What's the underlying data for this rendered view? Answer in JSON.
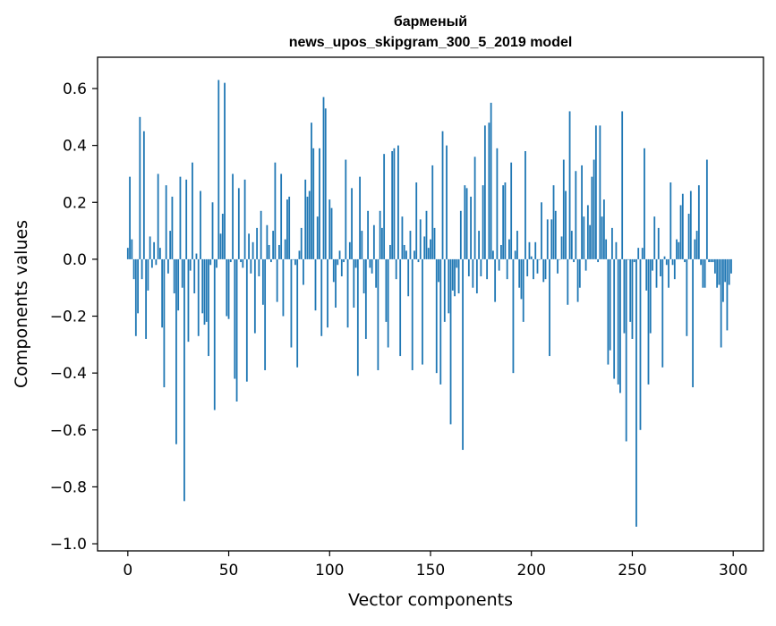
{
  "chart_data": {
    "type": "bar",
    "title": "барменый",
    "subtitle": "news_upos_skipgram_300_5_2019 model",
    "xlabel": "Vector components",
    "ylabel": "Components values",
    "xlim": [
      -15,
      315
    ],
    "ylim": [
      -1.025,
      0.71
    ],
    "xticks": [
      0,
      50,
      100,
      150,
      200,
      250,
      300
    ],
    "xtick_labels": [
      "0",
      "50",
      "100",
      "150",
      "200",
      "250",
      "300"
    ],
    "yticks": [
      -1.0,
      -0.8,
      -0.6,
      -0.4,
      -0.2,
      0.0,
      0.2,
      0.4,
      0.6
    ],
    "ytick_labels": [
      "−1.0",
      "−0.8",
      "−0.6",
      "−0.4",
      "−0.2",
      "0.0",
      "0.2",
      "0.4",
      "0.6"
    ],
    "bar_color": "#1f77b4",
    "grid": false,
    "x": [
      0,
      1,
      2,
      3,
      4,
      5,
      6,
      7,
      8,
      9,
      10,
      11,
      12,
      13,
      14,
      15,
      16,
      17,
      18,
      19,
      20,
      21,
      22,
      23,
      24,
      25,
      26,
      27,
      28,
      29,
      30,
      31,
      32,
      33,
      34,
      35,
      36,
      37,
      38,
      39,
      40,
      41,
      42,
      43,
      44,
      45,
      46,
      47,
      48,
      49,
      50,
      51,
      52,
      53,
      54,
      55,
      56,
      57,
      58,
      59,
      60,
      61,
      62,
      63,
      64,
      65,
      66,
      67,
      68,
      69,
      70,
      71,
      72,
      73,
      74,
      75,
      76,
      77,
      78,
      79,
      80,
      81,
      82,
      83,
      84,
      85,
      86,
      87,
      88,
      89,
      90,
      91,
      92,
      93,
      94,
      95,
      96,
      97,
      98,
      99,
      100,
      101,
      102,
      103,
      104,
      105,
      106,
      107,
      108,
      109,
      110,
      111,
      112,
      113,
      114,
      115,
      116,
      117,
      118,
      119,
      120,
      121,
      122,
      123,
      124,
      125,
      126,
      127,
      128,
      129,
      130,
      131,
      132,
      133,
      134,
      135,
      136,
      137,
      138,
      139,
      140,
      141,
      142,
      143,
      144,
      145,
      146,
      147,
      148,
      149,
      150,
      151,
      152,
      153,
      154,
      155,
      156,
      157,
      158,
      159,
      160,
      161,
      162,
      163,
      164,
      165,
      166,
      167,
      168,
      169,
      170,
      171,
      172,
      173,
      174,
      175,
      176,
      177,
      178,
      179,
      180,
      181,
      182,
      183,
      184,
      185,
      186,
      187,
      188,
      189,
      190,
      191,
      192,
      193,
      194,
      195,
      196,
      197,
      198,
      199,
      200,
      201,
      202,
      203,
      204,
      205,
      206,
      207,
      208,
      209,
      210,
      211,
      212,
      213,
      214,
      215,
      216,
      217,
      218,
      219,
      220,
      221,
      222,
      223,
      224,
      225,
      226,
      227,
      228,
      229,
      230,
      231,
      232,
      233,
      234,
      235,
      236,
      237,
      238,
      239,
      240,
      241,
      242,
      243,
      244,
      245,
      246,
      247,
      248,
      249,
      250,
      251,
      252,
      253,
      254,
      255,
      256,
      257,
      258,
      259,
      260,
      261,
      262,
      263,
      264,
      265,
      266,
      267,
      268,
      269,
      270,
      271,
      272,
      273,
      274,
      275,
      276,
      277,
      278,
      279,
      280,
      281,
      282,
      283,
      284,
      285,
      286,
      287,
      288,
      289,
      290,
      291,
      292,
      293,
      294,
      295,
      296,
      297,
      298,
      299
    ],
    "values": [
      0.04,
      0.29,
      0.07,
      -0.07,
      -0.27,
      -0.19,
      0.5,
      -0.07,
      0.45,
      -0.28,
      -0.11,
      0.08,
      -0.03,
      0.06,
      -0.02,
      0.3,
      0.04,
      -0.24,
      -0.45,
      0.26,
      -0.05,
      0.1,
      0.22,
      -0.12,
      -0.65,
      -0.18,
      0.29,
      -0.1,
      -0.85,
      0.28,
      -0.29,
      -0.04,
      0.34,
      -0.12,
      0.02,
      -0.27,
      0.24,
      -0.19,
      -0.23,
      -0.22,
      -0.34,
      -0.02,
      0.2,
      -0.53,
      -0.03,
      0.63,
      0.09,
      0.16,
      0.62,
      -0.2,
      -0.21,
      -0.01,
      0.3,
      -0.42,
      -0.5,
      0.25,
      -0.01,
      -0.03,
      0.28,
      -0.43,
      0.09,
      -0.05,
      0.06,
      -0.26,
      0.11,
      -0.06,
      0.17,
      -0.16,
      -0.39,
      0.12,
      0.05,
      -0.01,
      0.1,
      0.34,
      -0.15,
      0.05,
      0.3,
      -0.2,
      0.07,
      0.21,
      0.22,
      -0.31,
      0.0,
      -0.02,
      -0.38,
      0.03,
      0.11,
      -0.09,
      0.28,
      0.22,
      0.24,
      0.48,
      0.39,
      -0.18,
      0.15,
      0.39,
      -0.27,
      0.57,
      0.53,
      -0.24,
      0.21,
      0.18,
      -0.08,
      -0.17,
      -0.02,
      0.03,
      -0.06,
      -0.01,
      0.35,
      -0.24,
      0.06,
      0.25,
      -0.17,
      -0.03,
      -0.41,
      0.29,
      0.1,
      -0.12,
      -0.28,
      0.17,
      -0.03,
      -0.05,
      0.12,
      -0.1,
      -0.39,
      0.17,
      0.11,
      0.37,
      -0.22,
      -0.31,
      0.05,
      0.38,
      0.39,
      -0.07,
      0.4,
      -0.34,
      0.15,
      0.05,
      0.03,
      -0.13,
      0.1,
      -0.39,
      0.03,
      0.27,
      -0.01,
      0.14,
      -0.37,
      0.08,
      0.17,
      0.04,
      0.07,
      0.33,
      0.11,
      -0.4,
      -0.08,
      -0.44,
      0.45,
      -0.22,
      0.4,
      -0.19,
      -0.58,
      -0.11,
      -0.13,
      -0.03,
      -0.12,
      0.17,
      -0.67,
      0.26,
      0.25,
      -0.06,
      0.22,
      -0.1,
      0.36,
      -0.12,
      0.1,
      -0.06,
      0.26,
      0.47,
      -0.07,
      0.48,
      0.55,
      0.03,
      -0.15,
      0.39,
      -0.04,
      0.05,
      0.26,
      0.27,
      -0.07,
      0.07,
      0.34,
      -0.4,
      0.03,
      0.1,
      -0.1,
      -0.14,
      -0.22,
      0.38,
      -0.06,
      0.06,
      0.01,
      -0.07,
      0.06,
      -0.05,
      0.0,
      0.2,
      -0.08,
      -0.07,
      0.14,
      -0.34,
      0.14,
      0.26,
      0.17,
      -0.05,
      0.0,
      0.08,
      0.35,
      0.24,
      -0.16,
      0.52,
      0.1,
      -0.01,
      0.31,
      -0.15,
      -0.1,
      0.33,
      0.15,
      -0.04,
      0.19,
      0.12,
      0.29,
      0.35,
      0.47,
      -0.01,
      0.47,
      0.15,
      0.21,
      0.07,
      -0.37,
      -0.32,
      0.11,
      -0.42,
      0.06,
      -0.44,
      -0.47,
      0.52,
      -0.26,
      -0.64,
      0.0,
      -0.22,
      -0.28,
      -0.01,
      -0.94,
      0.04,
      -0.6,
      0.04,
      0.39,
      -0.11,
      -0.44,
      -0.26,
      -0.04,
      0.15,
      -0.1,
      0.11,
      -0.06,
      -0.38,
      0.01,
      -0.02,
      -0.1,
      0.27,
      -0.02,
      -0.07,
      0.07,
      0.06,
      0.19,
      0.23,
      -0.01,
      -0.27,
      0.16,
      0.24,
      -0.45,
      0.07,
      0.1,
      0.26,
      -0.02,
      -0.1,
      -0.1,
      0.35,
      -0.01,
      -0.01,
      -0.01,
      -0.05,
      -0.1,
      -0.09,
      -0.31,
      -0.15,
      -0.08,
      -0.25,
      -0.09,
      -0.05
    ]
  }
}
